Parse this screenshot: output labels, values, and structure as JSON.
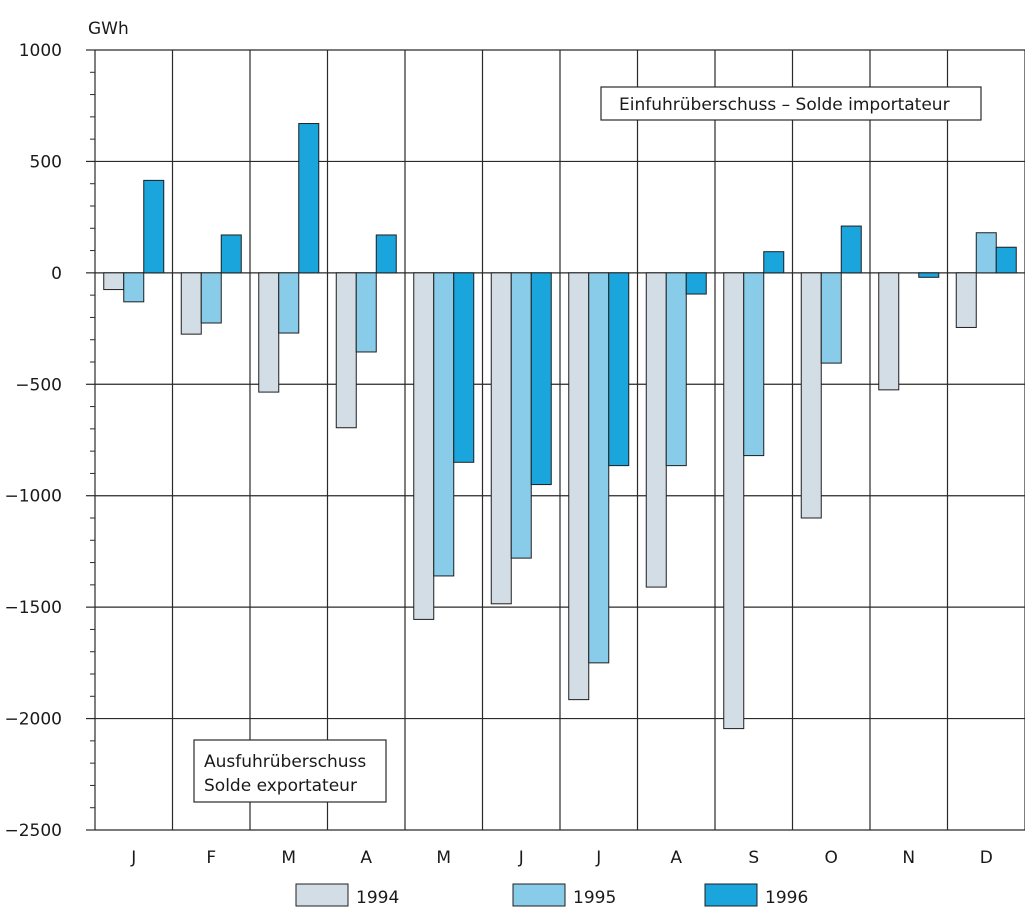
{
  "chart_data": {
    "type": "bar",
    "unit_label": "GWh",
    "categories": [
      "J",
      "F",
      "M",
      "A",
      "M",
      "J",
      "J",
      "A",
      "S",
      "O",
      "N",
      "D"
    ],
    "yticks": [
      1000,
      500,
      0,
      -500,
      -1000,
      -1500,
      -2000,
      -2500
    ],
    "ylim": [
      -2500,
      1000
    ],
    "grid": true,
    "series": [
      {
        "name": "1994",
        "color": "#d3dde5",
        "values": [
          -75,
          -275,
          -535,
          -695,
          -1555,
          -1485,
          -1915,
          -1410,
          -2045,
          -1100,
          -525,
          -245
        ]
      },
      {
        "name": "1995",
        "color": "#88cce9",
        "values": [
          -130,
          -225,
          -270,
          -355,
          -1360,
          -1280,
          -1750,
          -865,
          -820,
          -405,
          0,
          180
        ]
      },
      {
        "name": "1996",
        "color": "#1aa6dc",
        "values": [
          415,
          170,
          670,
          170,
          -850,
          -950,
          -865,
          -95,
          95,
          210,
          -20,
          115
        ]
      }
    ],
    "annotations": {
      "import": "Einfuhrüberschuss – Solde importateur",
      "export_line1": "Ausfuhrüberschuss",
      "export_line2": "Solde exportateur"
    },
    "legend_position": "bottom"
  }
}
